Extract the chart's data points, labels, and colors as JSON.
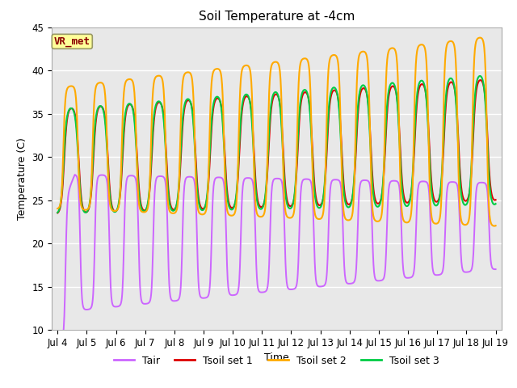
{
  "title": "Soil Temperature at -4cm",
  "xlabel": "Time",
  "ylabel": "Temperature (C)",
  "ylim": [
    10,
    45
  ],
  "annotation": "VR_met",
  "bg_color": "#e8e8e8",
  "line_colors": {
    "Tair": "#cc66ff",
    "Tsoil set 1": "#dd0000",
    "Tsoil set 2": "#ffaa00",
    "Tsoil set 3": "#00cc44"
  },
  "line_widths": {
    "Tair": 1.4,
    "Tsoil set 1": 1.5,
    "Tsoil set 2": 1.5,
    "Tsoil set 3": 1.5
  },
  "xtick_labels": [
    "Jul 4",
    "Jul 5",
    "Jul 6",
    "Jul 7",
    "Jul 8",
    "Jul 9",
    "Jul 10",
    "Jul 11",
    "Jul 12",
    "Jul 13",
    "Jul 14",
    "Jul 15",
    "Jul 16",
    "Jul 17",
    "Jul 18",
    "Jul 19"
  ],
  "xtick_positions": [
    0,
    1,
    2,
    3,
    4,
    5,
    6,
    7,
    8,
    9,
    10,
    11,
    12,
    13,
    14,
    15
  ],
  "ytick_labels": [
    "10",
    "15",
    "20",
    "25",
    "30",
    "35",
    "40",
    "45"
  ],
  "ytick_positions": [
    10,
    15,
    20,
    25,
    30,
    35,
    40,
    45
  ],
  "figsize": [
    6.4,
    4.8
  ],
  "dpi": 100
}
